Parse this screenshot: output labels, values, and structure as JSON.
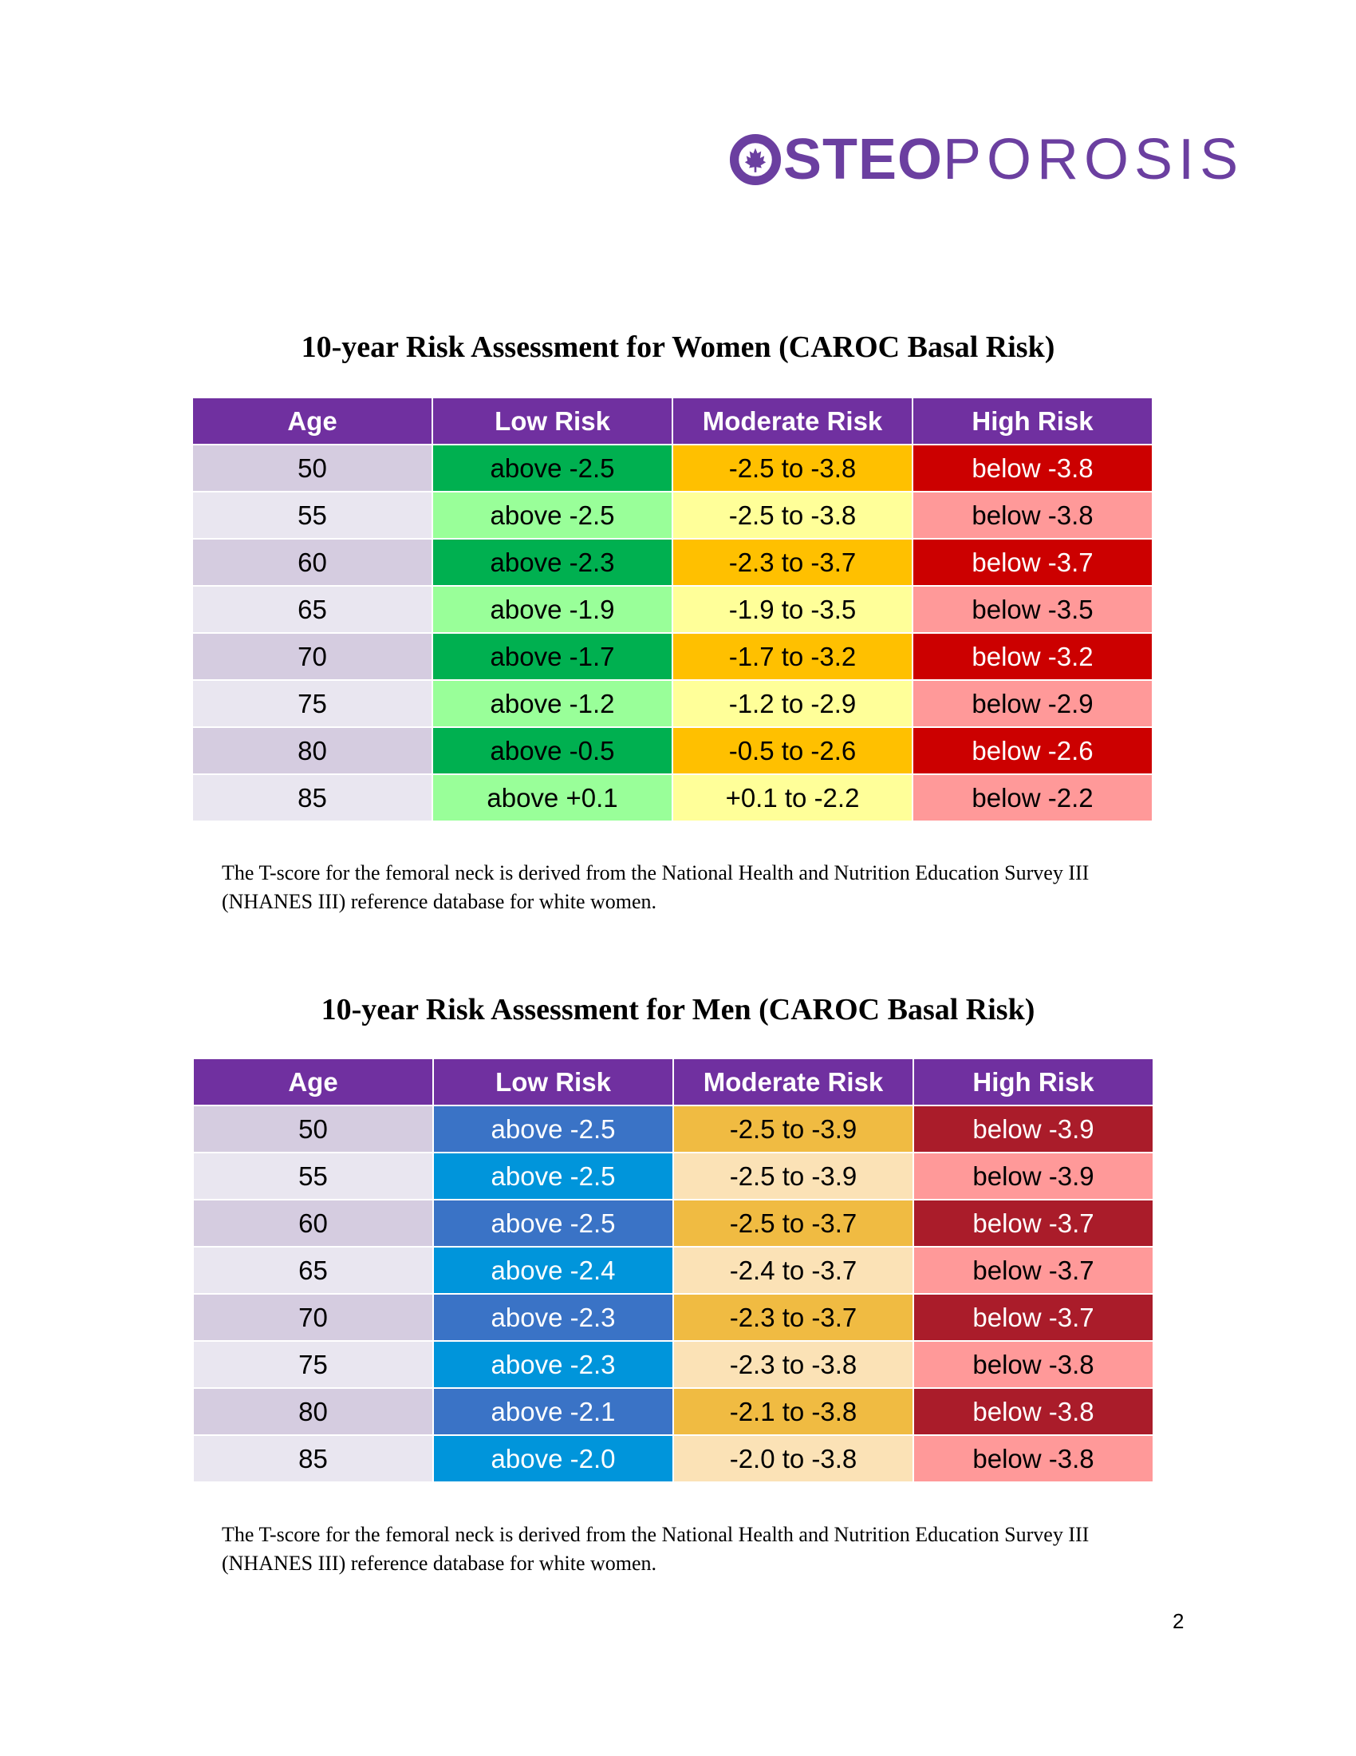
{
  "logo": {
    "bold_text": "STEO",
    "light_text": "POROSIS",
    "color": "#6b3fa0"
  },
  "women": {
    "title": "10-year Risk Assessment for Women (CAROC Basal Risk)",
    "headers": [
      "Age",
      "Low Risk",
      "Moderate Risk",
      "High Risk"
    ],
    "header_color": "#7030a0",
    "row_colors": {
      "odd": [
        "#d5cce0",
        "#00b050",
        "#ffc000",
        "#cc0000"
      ],
      "even": [
        "#e9e6f0",
        "#99ff99",
        "#ffff99",
        "#ff9999"
      ]
    },
    "text_colors": {
      "odd": [
        "#000000",
        "#000000",
        "#000000",
        "#ffffff"
      ],
      "even": [
        "#000000",
        "#000000",
        "#000000",
        "#000000"
      ]
    },
    "rows": [
      [
        "50",
        "above -2.5",
        "-2.5 to -3.8",
        "below -3.8"
      ],
      [
        "55",
        "above -2.5",
        "-2.5 to -3.8",
        "below -3.8"
      ],
      [
        "60",
        "above -2.3",
        "-2.3 to -3.7",
        "below -3.7"
      ],
      [
        "65",
        "above -1.9",
        "-1.9 to -3.5",
        "below -3.5"
      ],
      [
        "70",
        "above -1.7",
        "-1.7 to -3.2",
        "below -3.2"
      ],
      [
        "75",
        "above -1.2",
        "-1.2 to -2.9",
        "below -2.9"
      ],
      [
        "80",
        "above -0.5",
        "-0.5 to -2.6",
        "below -2.6"
      ],
      [
        "85",
        "above +0.1",
        "+0.1 to -2.2",
        "below -2.2"
      ]
    ],
    "note": "The T-score for the femoral neck is derived from the National Health and Nutrition Education Survey III (NHANES III) reference database for white women."
  },
  "men": {
    "title": "10-year Risk Assessment for Men (CAROC Basal Risk)",
    "headers": [
      "Age",
      "Low Risk",
      "Moderate Risk",
      "High Risk"
    ],
    "header_color": "#7030a0",
    "row_colors": {
      "odd": [
        "#d5cce0",
        "#3a73c6",
        "#f0bb42",
        "#aa1c2a"
      ],
      "even": [
        "#e9e6f0",
        "#0095db",
        "#fbe2b6",
        "#ff9999"
      ]
    },
    "text_colors": {
      "odd": [
        "#000000",
        "#ffffff",
        "#000000",
        "#ffffff"
      ],
      "even": [
        "#000000",
        "#ffffff",
        "#000000",
        "#000000"
      ]
    },
    "rows": [
      [
        "50",
        "above -2.5",
        "-2.5 to -3.9",
        "below -3.9"
      ],
      [
        "55",
        "above -2.5",
        "-2.5 to -3.9",
        "below -3.9"
      ],
      [
        "60",
        "above -2.5",
        "-2.5 to -3.7",
        "below -3.7"
      ],
      [
        "65",
        "above -2.4",
        "-2.4 to -3.7",
        "below -3.7"
      ],
      [
        "70",
        "above -2.3",
        "-2.3 to -3.7",
        "below -3.7"
      ],
      [
        "75",
        "above -2.3",
        "-2.3 to -3.8",
        "below -3.8"
      ],
      [
        "80",
        "above -2.1",
        "-2.1 to -3.8",
        "below -3.8"
      ],
      [
        "85",
        "above -2.0",
        "-2.0 to -3.8",
        "below -3.8"
      ]
    ],
    "note": "The T-score for the femoral neck is derived from the National Health and Nutrition Education Survey III (NHANES III) reference database for white women."
  },
  "page_number": "2"
}
